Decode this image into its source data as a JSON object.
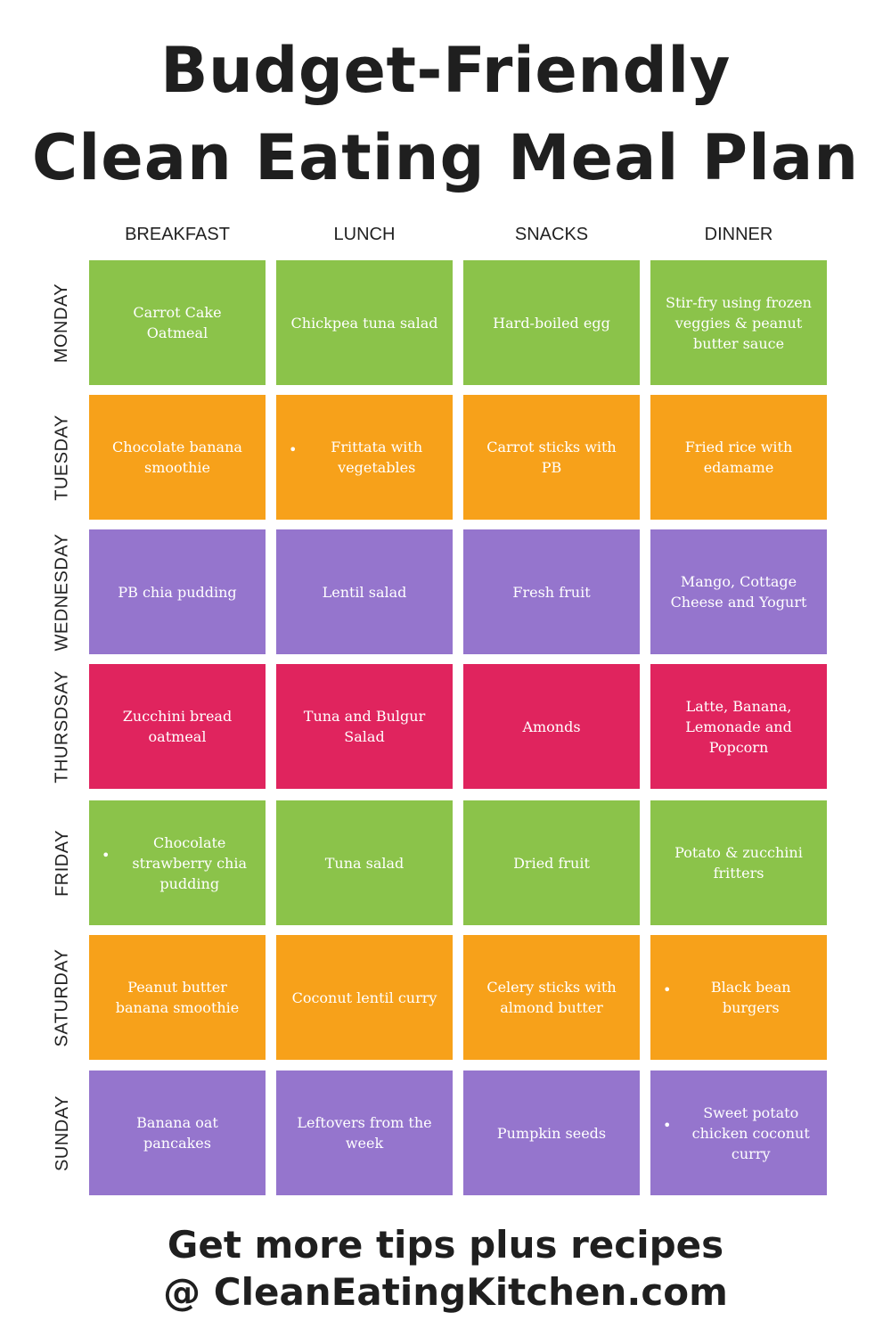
{
  "title": {
    "line1": "Budget-Friendly",
    "line2": "Clean Eating Meal Plan"
  },
  "columns": [
    "BREAKFAST",
    "LUNCH",
    "SNACKS",
    "DINNER"
  ],
  "colors": {
    "green": "#8bc34a",
    "orange": "#f7a11a",
    "purple": "#9575cd",
    "pink": "#e0245e"
  },
  "days": [
    {
      "name": "MONDAY",
      "color": "#8bc34a",
      "meals": [
        "Carrot Cake Oatmeal",
        "Chickpea tuna salad",
        "Hard-boiled egg",
        "Stir-fry using frozen veggies & peanut butter sauce"
      ],
      "bullets": [
        false,
        false,
        false,
        false
      ]
    },
    {
      "name": "TUESDAY",
      "color": "#f7a11a",
      "meals": [
        "Chocolate banana smoothie",
        "Frittata with vegetables",
        "Carrot sticks with PB",
        "Fried rice with edamame"
      ],
      "bullets": [
        false,
        true,
        false,
        false
      ]
    },
    {
      "name": "WEDNESDAY",
      "color": "#9575cd",
      "meals": [
        "PB chia pudding",
        "Lentil salad",
        "Fresh fruit",
        "Mango, Cottage Cheese and Yogurt"
      ],
      "bullets": [
        false,
        false,
        false,
        false
      ]
    },
    {
      "name": "THURSDSAY",
      "color": "#e0245e",
      "meals": [
        "Zucchini bread oatmeal",
        "Tuna and Bulgur Salad",
        "Amonds",
        "Latte, Banana, Lemonade and Popcorn"
      ],
      "bullets": [
        false,
        false,
        false,
        false
      ]
    },
    {
      "name": "FRIDAY",
      "color": "#8bc34a",
      "meals": [
        "Chocolate strawberry chia pudding",
        "Tuna salad",
        "Dried fruit",
        "Potato & zucchini fritters"
      ],
      "bullets": [
        true,
        false,
        false,
        false
      ]
    },
    {
      "name": "SATURDAY",
      "color": "#f7a11a",
      "meals": [
        "Peanut butter banana smoothie",
        "Coconut lentil curry",
        "Celery sticks with almond butter",
        "Black bean burgers"
      ],
      "bullets": [
        false,
        false,
        false,
        true
      ]
    },
    {
      "name": "SUNDAY",
      "color": "#9575cd",
      "meals": [
        "Banana oat pancakes",
        "Leftovers from the week",
        "Pumpkin seeds",
        "Sweet potato chicken coconut curry"
      ],
      "bullets": [
        false,
        false,
        false,
        true
      ]
    }
  ],
  "bullet_char": "•",
  "footer": {
    "line1": "Get more tips plus recipes",
    "line2": "@ CleanEatingKitchen.com"
  }
}
